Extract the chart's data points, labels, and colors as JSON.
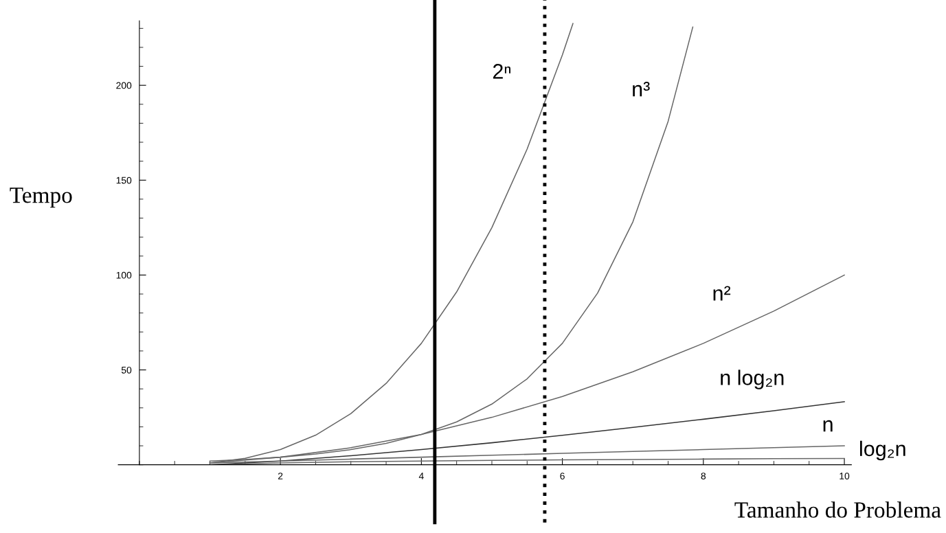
{
  "chart_data": {
    "type": "line",
    "xlabel": "Tamanho do Problema",
    "ylabel": "Tempo",
    "xlim": [
      -0.3,
      10.1
    ],
    "ylim": [
      0,
      234
    ],
    "xticks": [
      2,
      4,
      6,
      8,
      10
    ],
    "yticks": [
      50,
      100,
      150,
      200
    ],
    "grid": false,
    "legend": false,
    "marker": "none",
    "line_style": "solid",
    "series": [
      {
        "name": "2ⁿ",
        "color": "#666666",
        "x": [
          1,
          1.5,
          2,
          2.5,
          3,
          3.5,
          4,
          4.5,
          5,
          5.5,
          6,
          6.15
        ],
        "values": [
          1,
          3.4,
          8,
          15.6,
          27,
          42.9,
          64,
          91.1,
          125,
          166.4,
          216,
          232.6
        ]
      },
      {
        "name": "n³",
        "color": "#666666",
        "x": [
          1,
          1.5,
          2,
          2.5,
          3,
          3.5,
          4,
          4.5,
          5,
          5.5,
          6,
          6.5,
          7,
          7.5,
          7.85
        ],
        "values": [
          2,
          2.8,
          4,
          5.7,
          8,
          11.3,
          16,
          22.6,
          32,
          45.3,
          64,
          90.5,
          128,
          181,
          230.7
        ]
      },
      {
        "name": "n²",
        "color": "#666666",
        "x": [
          1,
          2,
          3,
          4,
          5,
          6,
          7,
          8,
          9,
          10
        ],
        "values": [
          1,
          4,
          9,
          16,
          25,
          36,
          49,
          64,
          81,
          100
        ]
      },
      {
        "name": "n log₂n",
        "color": "#333333",
        "x": [
          1,
          2,
          3,
          4,
          5,
          6,
          7,
          8,
          9,
          10
        ],
        "values": [
          0,
          2,
          4.8,
          8,
          11.6,
          15.5,
          19.7,
          24,
          28.5,
          33.2
        ]
      },
      {
        "name": "n",
        "color": "#666666",
        "x": [
          1,
          2,
          3,
          4,
          5,
          6,
          7,
          8,
          9,
          10
        ],
        "values": [
          1,
          2,
          3,
          4,
          5,
          6,
          7,
          8,
          9,
          10
        ]
      },
      {
        "name": "log₂n",
        "color": "#666666",
        "x": [
          1,
          2,
          3,
          4,
          5,
          6,
          7,
          8,
          9,
          10
        ],
        "values": [
          0,
          1,
          1.6,
          2,
          2.3,
          2.6,
          2.8,
          3,
          3.2,
          3.3
        ]
      }
    ],
    "ref_lines": [
      {
        "axis": "x",
        "value": 4.19,
        "color": "#000000",
        "line_style": "solid"
      },
      {
        "axis": "x",
        "value": 5.75,
        "color": "#000000",
        "line_style": "dotted"
      }
    ]
  }
}
